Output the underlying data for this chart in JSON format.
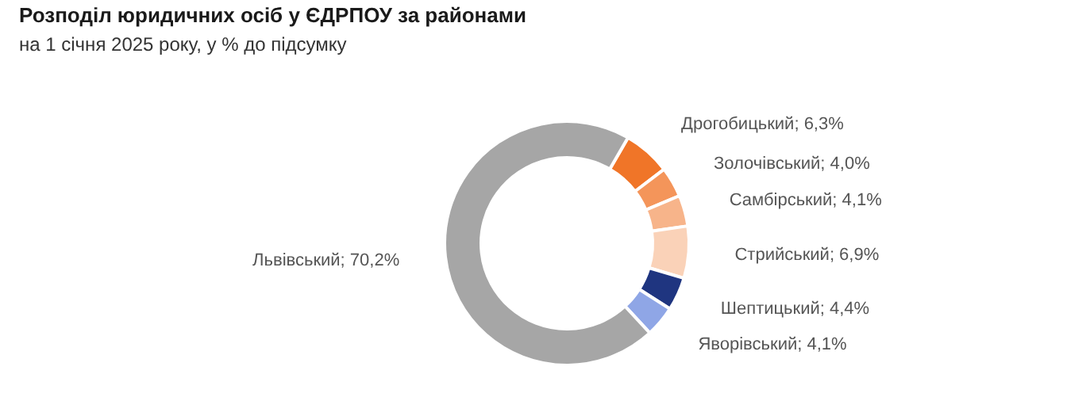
{
  "chart_data": {
    "type": "donut",
    "title": "Розподіл юридичних осіб у ЄДРПОУ за районами",
    "subtitle": "на 1 січня 2025 року, у % до підсумку",
    "categories": [
      "Дрогобицький",
      "Золочівський",
      "Самбірський",
      "Стрийський",
      "Шептицький",
      "Яворівський",
      "Львівський"
    ],
    "values": [
      6.3,
      4.0,
      4.1,
      6.9,
      4.4,
      4.1,
      70.2
    ],
    "value_labels": [
      "6,3%",
      "4,0%",
      "4,1%",
      "6,9%",
      "4,4%",
      "4,1%",
      "70,2%"
    ],
    "colors": [
      "#f07528",
      "#f4955a",
      "#f7b48a",
      "#fad2b8",
      "#1f3580",
      "#8fa6e6",
      "#a6a6a6"
    ]
  }
}
